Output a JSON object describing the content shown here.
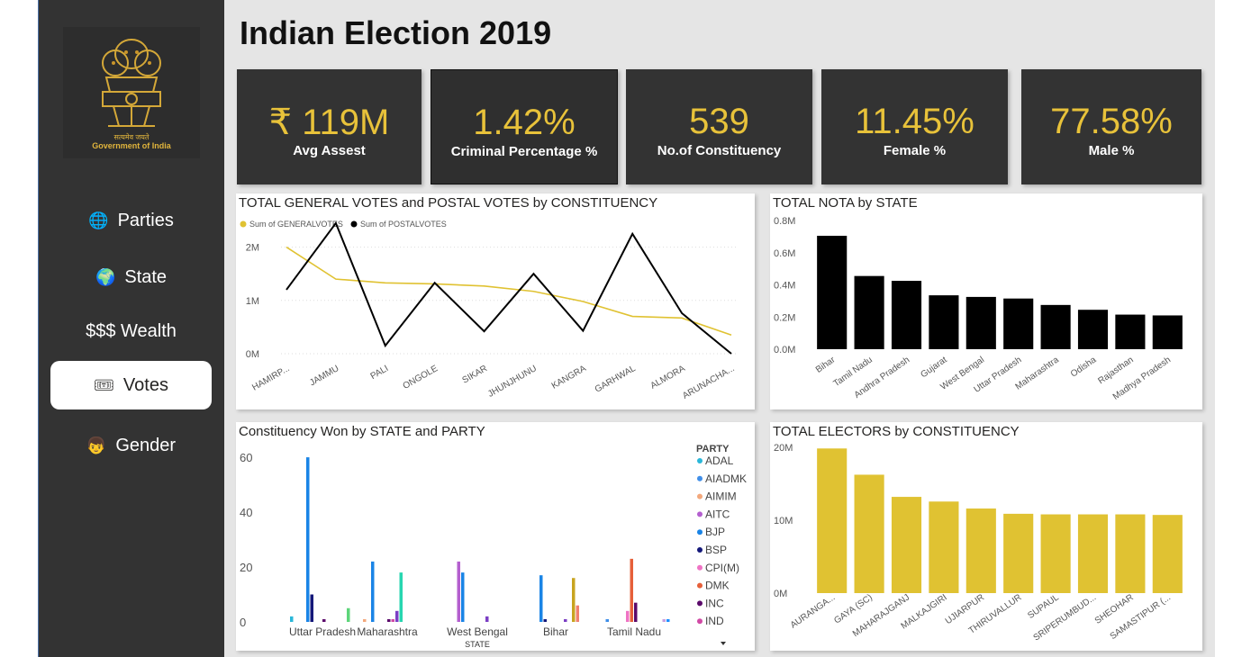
{
  "app": {
    "title": "Indian Election 2019",
    "logo_caption_hindi": "सत्यमेव जयते",
    "logo_caption": "Government of India"
  },
  "nav": {
    "items": [
      {
        "icon": "🌐",
        "label": "Parties",
        "active": false
      },
      {
        "icon": "🌍",
        "label": "State",
        "active": false
      },
      {
        "icon": "",
        "label": "$$$ Wealth",
        "active": false
      },
      {
        "icon": "🎟",
        "label": "Votes",
        "active": true
      },
      {
        "icon": "👦",
        "label": "Gender",
        "active": false
      }
    ]
  },
  "kpis": [
    {
      "value": "₹ 119M",
      "label": "Avg Assest"
    },
    {
      "value": "1.42%",
      "label": "Criminal Percentage %"
    },
    {
      "value": "539",
      "label": "No.of Constituency"
    },
    {
      "value": "11.45%",
      "label": "Female %"
    },
    {
      "value": "77.58%",
      "label": "Male %"
    }
  ],
  "colors": {
    "gold": "#e0c232",
    "black": "#000000",
    "kpi_value": "#e8c23a",
    "sidebar": "#333333"
  },
  "chart_data": [
    {
      "type": "line",
      "title": "TOTAL GENERAL VOTES and POSTAL VOTES by CONSTITUENCY",
      "categories": [
        "HAMIRP...",
        "JAMMU",
        "PALI",
        "ONGOLE",
        "SIKAR",
        "JHUNJHUNU",
        "KANGRA",
        "GARHWAL",
        "ALMORA",
        "ARUNACHA..."
      ],
      "y_ticks": [
        "0M",
        "1M",
        "2M"
      ],
      "ylim": [
        0,
        2500000
      ],
      "series": [
        {
          "name": "Sum of GENERALVOTES",
          "color": "#e0c232",
          "values": [
            2000000,
            1400000,
            1330000,
            1310000,
            1270000,
            1170000,
            980000,
            700000,
            670000,
            350000
          ]
        },
        {
          "name": "Sum of POSTALVOTES",
          "color": "#000000",
          "values": [
            1200000,
            2450000,
            150000,
            1330000,
            420000,
            1500000,
            430000,
            2250000,
            760000,
            0
          ]
        }
      ]
    },
    {
      "type": "bar",
      "title": "TOTAL NOTA by STATE",
      "categories": [
        "Bihar",
        "Tamil Nadu",
        "Andhra Pradesh",
        "Gujarat",
        "West Bengal",
        "Uttar Pradesh",
        "Maharashtra",
        "Odisha",
        "Rajasthan",
        "Madhya Pradesh"
      ],
      "values": [
        705000,
        455000,
        425000,
        335000,
        325000,
        315000,
        275000,
        245000,
        215000,
        210000
      ],
      "y_ticks": [
        "0.0M",
        "0.2M",
        "0.4M",
        "0.6M",
        "0.8M"
      ],
      "ylim": [
        0,
        800000
      ],
      "color": "#000000"
    },
    {
      "type": "bar",
      "title": "Constituency Won by STATE and PARTY",
      "xlabel": "STATE",
      "legend_title": "PARTY",
      "categories": [
        "Uttar Pradesh",
        "Maharashtra",
        "West Bengal",
        "Bihar",
        "Tamil Nadu"
      ],
      "y_ticks": [
        "0",
        "20",
        "40",
        "60"
      ],
      "ylim": [
        0,
        62
      ],
      "series": [
        {
          "name": "ADAL",
          "color": "#2ab7d9",
          "values": [
            2,
            0,
            0,
            0,
            0
          ]
        },
        {
          "name": "AIADMK",
          "color": "#3f8ee8",
          "values": [
            0,
            0,
            0,
            0,
            1
          ]
        },
        {
          "name": "AIMIM",
          "color": "#f3a87c",
          "values": [
            0,
            1,
            0,
            0,
            0
          ]
        },
        {
          "name": "AITC",
          "color": "#b45fcf",
          "values": [
            0,
            0,
            22,
            0,
            0
          ]
        },
        {
          "name": "BJP",
          "color": "#1a84e6",
          "values": [
            60,
            22,
            18,
            17,
            0
          ]
        },
        {
          "name": "BSP",
          "color": "#14187a",
          "values": [
            10,
            0,
            0,
            1,
            0
          ]
        },
        {
          "name": "CPI(M)",
          "color": "#ef73c4",
          "values": [
            0,
            0,
            0,
            0,
            4
          ]
        },
        {
          "name": "DMK",
          "color": "#e6603a",
          "values": [
            0,
            0,
            0,
            0,
            23
          ]
        },
        {
          "name": "INC",
          "color": "#5b0a6b",
          "values": [
            1,
            1,
            0,
            0,
            7
          ]
        },
        {
          "name": "IND",
          "color": "#d149a5",
          "values": [
            0,
            1,
            0,
            0,
            0
          ]
        },
        {
          "name": "",
          "color": "#7b3fc4",
          "values": [
            0,
            4,
            2,
            1,
            0
          ]
        },
        {
          "name": "",
          "color": "#27d6b0",
          "values": [
            0,
            18,
            0,
            0,
            0
          ]
        },
        {
          "name": "",
          "color": "#c8a420",
          "values": [
            0,
            0,
            0,
            16,
            0
          ]
        },
        {
          "name": "",
          "color": "#f08070",
          "values": [
            0,
            0,
            0,
            6,
            0
          ]
        },
        {
          "name": "",
          "color": "#5dd57a",
          "values": [
            5,
            0,
            0,
            0,
            0
          ]
        },
        {
          "name": "",
          "color": "#c9a0e0",
          "values": [
            0,
            0,
            0,
            0,
            1
          ]
        },
        {
          "name": "",
          "color": "#1e90ff",
          "values": [
            0,
            0,
            0,
            0,
            1
          ]
        }
      ],
      "legend_entries": [
        "ADAL",
        "AIADMK",
        "AIMIM",
        "AITC",
        "BJP",
        "BSP",
        "CPI(M)",
        "DMK",
        "INC",
        "IND"
      ]
    },
    {
      "type": "bar",
      "title": "TOTAL ELECTORS by CONSTITUENCY",
      "categories": [
        "AURANGA...",
        "GAYA (SC)",
        "MAHARAJGANJ",
        "MALKAJGIRI",
        "UJIARPUR",
        "THIRUVALLUR",
        "SUPAUL",
        "SRIPERUMBUD...",
        "SHEOHAR",
        "SAMASTIPUR (..."
      ],
      "values": [
        24800000,
        20300000,
        16500000,
        15700000,
        14500000,
        13600000,
        13500000,
        13500000,
        13500000,
        13400000
      ],
      "y_ticks": [
        "0M",
        "10M",
        "20M"
      ],
      "ylim": [
        0,
        25000000
      ],
      "color": "#e0c232"
    }
  ]
}
